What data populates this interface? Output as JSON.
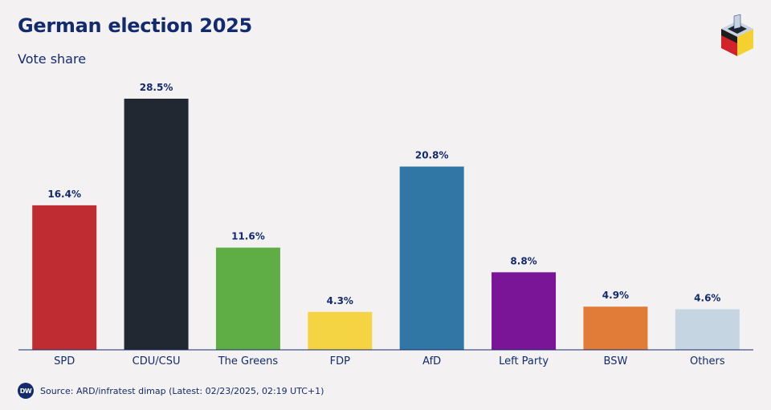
{
  "header": {
    "title": "German election 2025",
    "subtitle": "Vote share"
  },
  "logo": {
    "icon": "ballot-box-icon",
    "colors": [
      "#1c1c1c",
      "#d2232a",
      "#f5d130",
      "#c7d3e3"
    ]
  },
  "footer": {
    "brand": "DW",
    "source": "Source: ARD/infratest dimap (Latest: 02/23/2025, 02:19 UTC+1)"
  },
  "chart_data": {
    "type": "bar",
    "title": "German election 2025",
    "subtitle": "Vote share",
    "categories": [
      "SPD",
      "CDU/CSU",
      "The Greens",
      "FDP",
      "AfD",
      "Left Party",
      "BSW",
      "Others"
    ],
    "values": [
      16.4,
      28.5,
      11.6,
      4.3,
      20.8,
      8.8,
      4.9,
      4.6
    ],
    "labels": [
      "16.4%",
      "28.5%",
      "11.6%",
      "4.3%",
      "20.8%",
      "8.8%",
      "4.9%",
      "4.6%"
    ],
    "colors": [
      "#bf2d32",
      "#222832",
      "#5fae45",
      "#f5d443",
      "#3177a5",
      "#7b1598",
      "#e17b38",
      "#c5d5e2"
    ],
    "ylim": [
      0,
      28.5
    ],
    "grid": false,
    "legend": "none"
  }
}
